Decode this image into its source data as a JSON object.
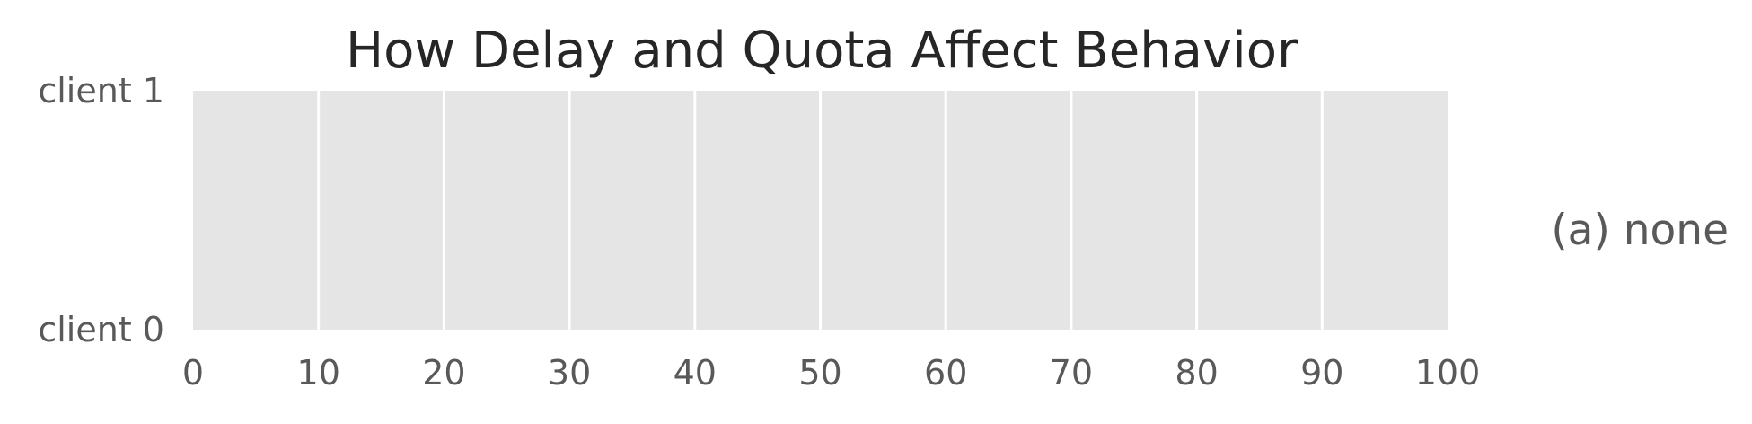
{
  "chart_data": {
    "type": "bar",
    "orientation": "horizontal",
    "title": "How Delay and Quota Affect Behavior",
    "xlabel": "",
    "ylabel": "",
    "xlim": [
      0,
      100
    ],
    "ylim": [
      0,
      1
    ],
    "x_ticks": [
      "0",
      "10",
      "20",
      "30",
      "40",
      "50",
      "60",
      "70",
      "80",
      "90",
      "100"
    ],
    "categories": [
      "client 0",
      "client 1"
    ],
    "series": [],
    "grid": "vertical",
    "panel_label": "(a) none",
    "colors": {
      "background": "#e5e5e5",
      "grid": "#ffffff",
      "title": "#262626",
      "tick_text": "#595959"
    }
  }
}
